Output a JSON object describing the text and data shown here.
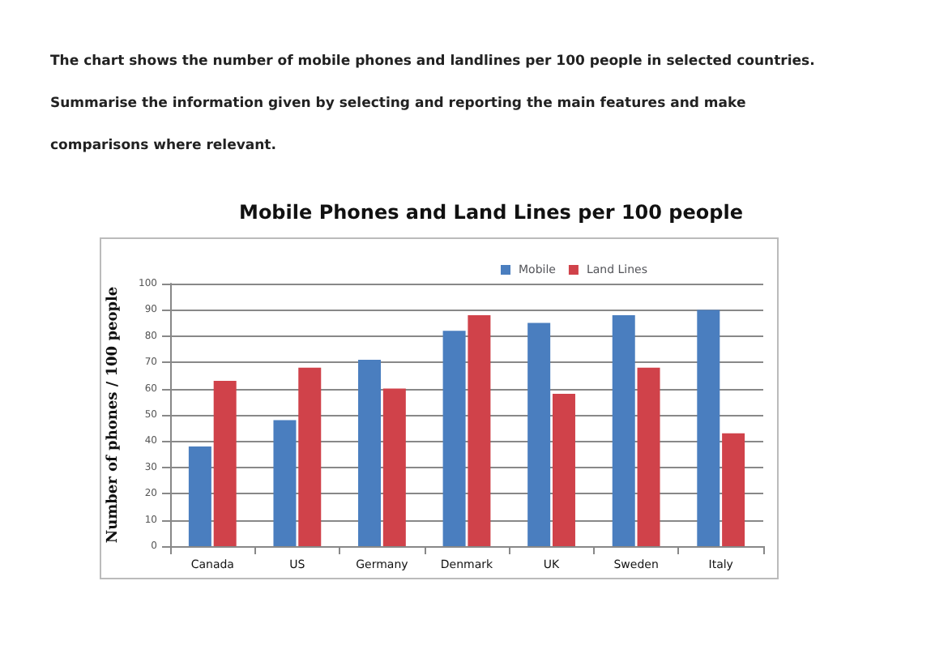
{
  "chart_data": {
    "type": "bar",
    "subtitle": "The chart shows the number of mobile phones and landlines per 100 people in selected countries. Summarise the information given by selecting and reporting the main features and make comparisons where relevant.",
    "title": "Mobile Phones and Land Lines per 100 people",
    "ylabel": "Number of phones / 100 people",
    "categories": [
      "Canada",
      "US",
      "Germany",
      "Denmark",
      "UK",
      "Sweden",
      "Italy"
    ],
    "series": [
      {
        "name": "Mobile",
        "color": "#4a7ebf",
        "values": [
          38,
          48,
          71,
          82,
          85,
          88,
          90
        ]
      },
      {
        "name": "Land Lines",
        "color": "#d0424a",
        "values": [
          63,
          68,
          60,
          88,
          58,
          68,
          43
        ]
      }
    ],
    "ylim": [
      0,
      100
    ],
    "yticks": [
      0,
      10,
      20,
      30,
      40,
      50,
      60,
      70,
      80,
      90,
      100
    ],
    "grid": "y",
    "legend": "top"
  }
}
